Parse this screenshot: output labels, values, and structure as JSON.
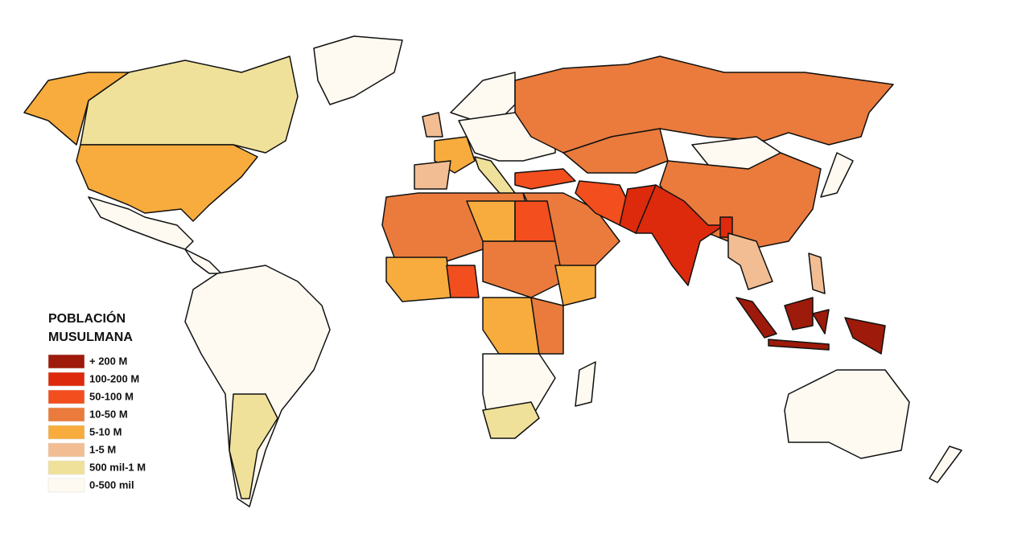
{
  "legend": {
    "title_lines": [
      "POBLACIÓN",
      "MUSULMANA"
    ],
    "entries": [
      {
        "label": "+ 200 M",
        "color": "#9e1a0a"
      },
      {
        "label": "100-200 M",
        "color": "#dd2a0c"
      },
      {
        "label": "50-100 M",
        "color": "#f24e1e"
      },
      {
        "label": "10-50 M",
        "color": "#ea7b3c"
      },
      {
        "label": "5-10 M",
        "color": "#f7ac3d"
      },
      {
        "label": "1-5 M",
        "color": "#f2bd92"
      },
      {
        "label": "500 mil-1 M",
        "color": "#f0e19a"
      },
      {
        "label": "0-500 mil",
        "color": "#fefaf1"
      }
    ]
  }
}
